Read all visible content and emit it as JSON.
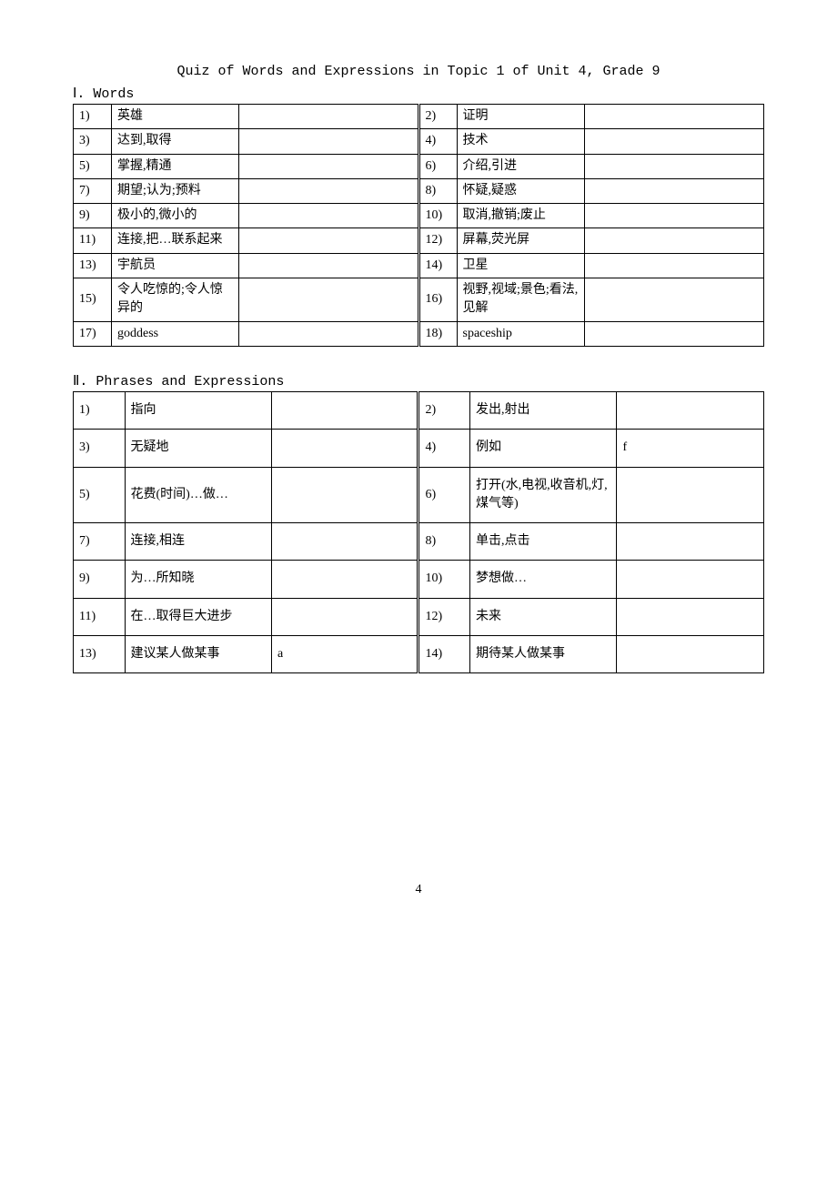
{
  "title": "Quiz of Words and Expressions in Topic 1 of Unit 4, Grade 9",
  "sections": {
    "words": {
      "heading": "Ⅰ. Words",
      "rows": [
        {
          "n1": "1)",
          "l1": "英雄",
          "a1": "",
          "n2": "2)",
          "l2": "证明",
          "a2": ""
        },
        {
          "n1": "3)",
          "l1": "达到,取得",
          "a1": "",
          "n2": "4)",
          "l2": "技术",
          "a2": ""
        },
        {
          "n1": "5)",
          "l1": "掌握,精通",
          "a1": "",
          "n2": "6)",
          "l2": "介绍,引进",
          "a2": ""
        },
        {
          "n1": "7)",
          "l1": "期望;认为;预料",
          "a1": "",
          "n2": "8)",
          "l2": "怀疑,疑惑",
          "a2": ""
        },
        {
          "n1": "9)",
          "l1": "极小的,微小的",
          "a1": "",
          "n2": "10)",
          "l2": "取消,撤销;废止",
          "a2": ""
        },
        {
          "n1": "11)",
          "l1": "连接,把…联系起来",
          "a1": "",
          "n2": "12)",
          "l2": "屏幕,荧光屏",
          "a2": ""
        },
        {
          "n1": "13)",
          "l1": "宇航员",
          "a1": "",
          "n2": "14)",
          "l2": "卫星",
          "a2": ""
        },
        {
          "n1": "15)",
          "l1": "令人吃惊的;令人惊异的",
          "a1": "",
          "n2": "16)",
          "l2": "视野,视域;景色;看法,见解",
          "a2": ""
        },
        {
          "n1": "17)",
          "l1": "goddess",
          "a1": "",
          "n2": "18)",
          "l2": "spaceship",
          "a2": ""
        }
      ]
    },
    "phrases": {
      "heading": "Ⅱ. Phrases and Expressions",
      "rows": [
        {
          "n1": "1)",
          "l1": "指向",
          "a1": "",
          "n2": "2)",
          "l2": "发出,射出",
          "a2": ""
        },
        {
          "n1": "3)",
          "l1": "无疑地",
          "a1": "",
          "n2": "4)",
          "l2": "例如",
          "a2": "f"
        },
        {
          "n1": "5)",
          "l1": "花费(时间)…做…",
          "a1": "",
          "n2": "6)",
          "l2": "打开(水,电视,收音机,灯,煤气等)",
          "a2": ""
        },
        {
          "n1": "7)",
          "l1": "连接,相连",
          "a1": "",
          "n2": "8)",
          "l2": "单击,点击",
          "a2": ""
        },
        {
          "n1": "9)",
          "l1": "为…所知晓",
          "a1": "",
          "n2": "10)",
          "l2": "梦想做…",
          "a2": ""
        },
        {
          "n1": "11)",
          "l1": "在…取得巨大进步",
          "a1": "",
          "n2": "12)",
          "l2": "未来",
          "a2": ""
        },
        {
          "n1": "13)",
          "l1": "建议某人做某事",
          "a1": "a",
          "n2": "14)",
          "l2": "期待某人做某事",
          "a2": ""
        }
      ]
    }
  },
  "pageNumber": "4"
}
